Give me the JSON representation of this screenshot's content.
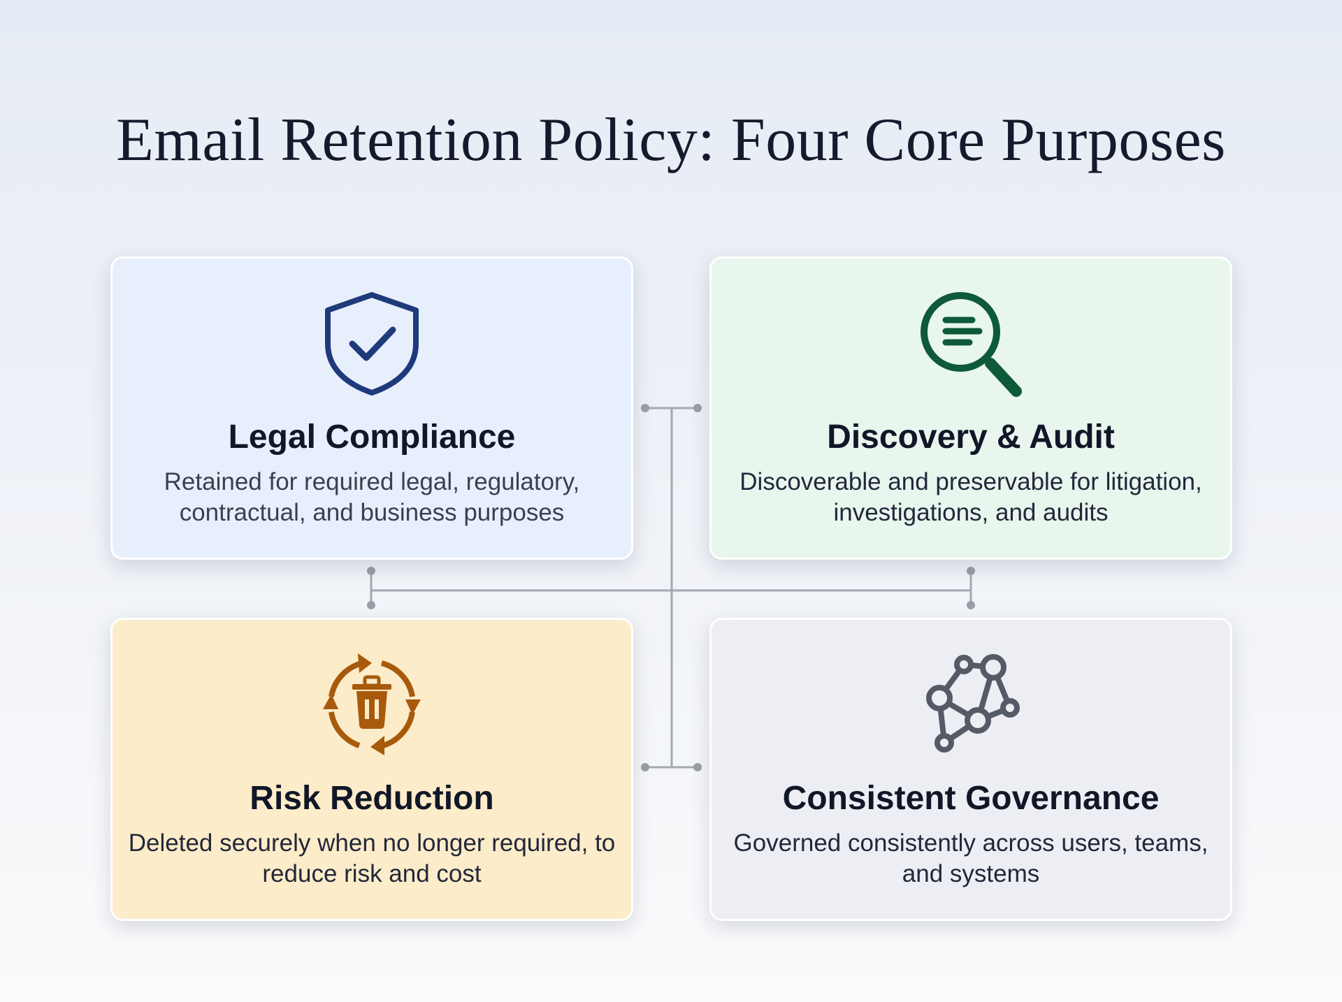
{
  "title": "Email Retention Policy: Four Core Purposes",
  "cards": [
    {
      "title": "Legal Compliance",
      "description": "Retained for required legal, regulatory, contractual, and business purposes",
      "icon": "shield-check-icon",
      "color": "#1e3a7a",
      "background": "#e8effc"
    },
    {
      "title": "Discovery & Audit",
      "description": "Discoverable and preservable for litigation, investigations, and audits",
      "icon": "magnifier-document-icon",
      "color": "#0e5a38",
      "background": "#e8f6ee"
    },
    {
      "title": "Risk Reduction",
      "description": "Deleted securely when no longer required, to reduce risk and cost",
      "icon": "recycle-trash-icon",
      "color": "#a85a0c",
      "background": "#fcecc9"
    },
    {
      "title": "Consistent Governance",
      "description": "Governed consistently across users, teams, and systems",
      "icon": "network-nodes-icon",
      "color": "#555b66",
      "background": "#eceef3"
    }
  ]
}
